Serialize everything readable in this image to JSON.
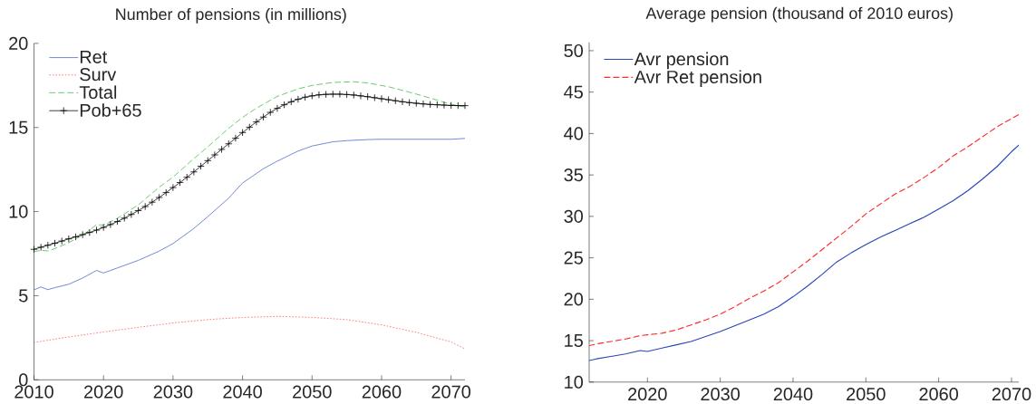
{
  "chart_data": [
    {
      "type": "line",
      "title": "Number of pensions (in millions)",
      "xlim": [
        2010,
        2072
      ],
      "ylim": [
        0,
        20
      ],
      "xticks": [
        2010,
        2020,
        2030,
        2040,
        2050,
        2060,
        2070
      ],
      "yticks": [
        0,
        5,
        10,
        15,
        20
      ],
      "legend": "top left",
      "series": [
        {
          "name": "Ret",
          "color": "#4464c8",
          "line_style": "solid",
          "x": [
            2010,
            2011,
            2012,
            2013,
            2015,
            2017,
            2019,
            2020,
            2022,
            2025,
            2028,
            2030,
            2033,
            2035,
            2038,
            2040,
            2043,
            2045,
            2048,
            2050,
            2053,
            2055,
            2058,
            2060,
            2065,
            2070,
            2072
          ],
          "values": [
            5.35,
            5.52,
            5.36,
            5.48,
            5.68,
            6.05,
            6.5,
            6.35,
            6.65,
            7.1,
            7.65,
            8.1,
            9.0,
            9.7,
            10.8,
            11.7,
            12.55,
            13.0,
            13.6,
            13.9,
            14.15,
            14.22,
            14.28,
            14.3,
            14.3,
            14.3,
            14.35
          ]
        },
        {
          "name": "Surv",
          "color": "#ff5a5a",
          "line_style": "dotted",
          "x": [
            2010,
            2015,
            2020,
            2025,
            2030,
            2035,
            2040,
            2045,
            2050,
            2055,
            2060,
            2065,
            2070,
            2072
          ],
          "values": [
            2.22,
            2.55,
            2.84,
            3.12,
            3.38,
            3.58,
            3.71,
            3.77,
            3.71,
            3.58,
            3.27,
            2.82,
            2.25,
            1.84
          ]
        },
        {
          "name": "Total",
          "color": "#3cb83c",
          "line_style": "dashed",
          "x": [
            2010,
            2011,
            2012,
            2013,
            2015,
            2017,
            2019,
            2020,
            2022,
            2025,
            2028,
            2030,
            2033,
            2035,
            2038,
            2040,
            2042,
            2045,
            2048,
            2050,
            2053,
            2056,
            2058,
            2061,
            2064,
            2067,
            2070,
            2072
          ],
          "values": [
            7.62,
            7.7,
            7.66,
            7.8,
            8.15,
            8.6,
            9.22,
            9.2,
            9.6,
            10.4,
            11.45,
            12.05,
            13.15,
            13.85,
            14.95,
            15.6,
            16.15,
            16.85,
            17.3,
            17.5,
            17.68,
            17.72,
            17.65,
            17.42,
            17.1,
            16.75,
            16.38,
            16.22
          ]
        },
        {
          "name": "Pob+65",
          "color": "#000000",
          "line_style": "solid",
          "marker": "cross",
          "x": [
            2010,
            2011,
            2012,
            2013,
            2014,
            2015,
            2016,
            2017,
            2018,
            2019,
            2020,
            2021,
            2022,
            2023,
            2024,
            2025,
            2026,
            2027,
            2028,
            2029,
            2030,
            2031,
            2032,
            2033,
            2034,
            2035,
            2036,
            2037,
            2038,
            2039,
            2040,
            2041,
            2042,
            2043,
            2044,
            2045,
            2046,
            2047,
            2048,
            2049,
            2050,
            2051,
            2052,
            2053,
            2054,
            2055,
            2056,
            2057,
            2058,
            2059,
            2060,
            2061,
            2062,
            2063,
            2064,
            2065,
            2066,
            2067,
            2068,
            2069,
            2070,
            2071,
            2072
          ],
          "values": [
            7.76,
            7.88,
            8.0,
            8.12,
            8.25,
            8.38,
            8.5,
            8.63,
            8.76,
            8.9,
            9.06,
            9.23,
            9.41,
            9.61,
            9.83,
            10.06,
            10.3,
            10.56,
            10.84,
            11.13,
            11.43,
            11.73,
            12.04,
            12.36,
            12.7,
            13.03,
            13.37,
            13.7,
            14.03,
            14.36,
            14.7,
            15.02,
            15.33,
            15.62,
            15.9,
            16.14,
            16.35,
            16.53,
            16.68,
            16.8,
            16.88,
            16.94,
            16.97,
            16.98,
            16.98,
            16.96,
            16.93,
            16.88,
            16.83,
            16.77,
            16.71,
            16.65,
            16.59,
            16.53,
            16.48,
            16.44,
            16.4,
            16.37,
            16.35,
            16.33,
            16.31,
            16.3,
            16.3
          ]
        }
      ]
    },
    {
      "type": "line",
      "title": "Average pension (thousand of 2010 euros)",
      "xlim": [
        2012,
        2071
      ],
      "ylim": [
        10,
        51
      ],
      "xticks": [
        2020,
        2030,
        2040,
        2050,
        2060,
        2070
      ],
      "yticks": [
        10,
        15,
        20,
        25,
        30,
        35,
        40,
        45,
        50
      ],
      "legend": "top left",
      "series": [
        {
          "name": "Avr pension",
          "color": "#2a46b8",
          "line_style": "solid",
          "x": [
            2012,
            2013,
            2015,
            2017,
            2019,
            2020,
            2022,
            2024,
            2026,
            2028,
            2030,
            2032,
            2034,
            2036,
            2038,
            2040,
            2042,
            2044,
            2046,
            2048,
            2050,
            2052,
            2054,
            2056,
            2058,
            2060,
            2062,
            2064,
            2066,
            2068,
            2070,
            2071
          ],
          "values": [
            12.6,
            12.8,
            13.1,
            13.4,
            13.8,
            13.7,
            14.1,
            14.5,
            14.9,
            15.5,
            16.1,
            16.8,
            17.5,
            18.2,
            19.1,
            20.3,
            21.6,
            23.0,
            24.5,
            25.6,
            26.6,
            27.5,
            28.3,
            29.1,
            29.9,
            30.9,
            31.9,
            33.1,
            34.5,
            36.0,
            37.8,
            38.6
          ]
        },
        {
          "name": "Avr Ret pension",
          "color": "#ff2a2a",
          "line_style": "dashed",
          "x": [
            2012,
            2013,
            2015,
            2017,
            2019,
            2020,
            2022,
            2024,
            2026,
            2028,
            2030,
            2032,
            2034,
            2036,
            2038,
            2040,
            2042,
            2044,
            2046,
            2048,
            2050,
            2052,
            2054,
            2056,
            2058,
            2060,
            2062,
            2064,
            2066,
            2068,
            2070,
            2071
          ],
          "values": [
            14.4,
            14.6,
            14.9,
            15.2,
            15.6,
            15.7,
            15.9,
            16.3,
            16.9,
            17.5,
            18.2,
            19.1,
            20.1,
            21.0,
            22.0,
            23.3,
            24.6,
            26.0,
            27.4,
            28.8,
            30.3,
            31.5,
            32.7,
            33.6,
            34.7,
            35.9,
            37.3,
            38.4,
            39.6,
            40.8,
            41.8,
            42.3
          ]
        }
      ]
    }
  ]
}
